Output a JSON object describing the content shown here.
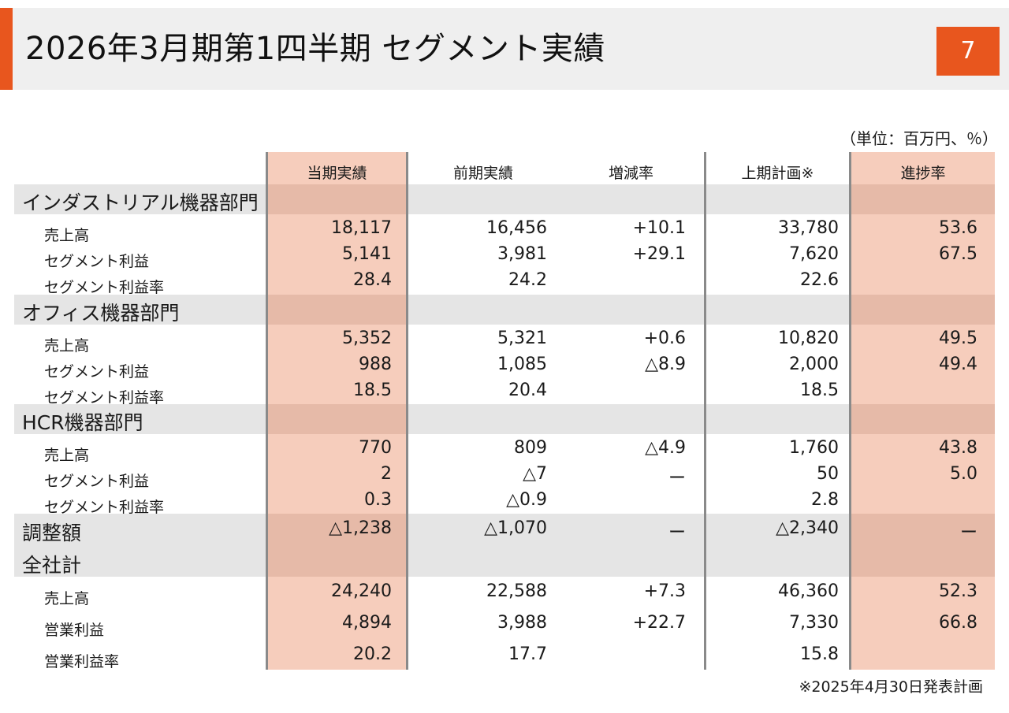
{
  "header": {
    "title": "2026年3月期第1四半期 セグメント実績",
    "page_number": "7"
  },
  "unit_note": "（単位：百万円、％）",
  "footnote": "※2025年4月30日発表計画",
  "columns": [
    "当期実績",
    "前期実績",
    "増減率",
    "上期計画※",
    "進捗率"
  ],
  "sections": [
    {
      "name": "インダストリアル機器部門",
      "rows": [
        {
          "label": "売上高",
          "values": [
            "18,117",
            "16,456",
            "+10.1",
            "33,780",
            "53.6"
          ]
        },
        {
          "label": "セグメント利益",
          "values": [
            "5,141",
            "3,981",
            "+29.1",
            "7,620",
            "67.5"
          ]
        },
        {
          "label": "セグメント利益率",
          "values": [
            "28.4",
            "24.2",
            "",
            "22.6",
            ""
          ]
        }
      ]
    },
    {
      "name": "オフィス機器部門",
      "rows": [
        {
          "label": "売上高",
          "values": [
            "5,352",
            "5,321",
            "+0.6",
            "10,820",
            "49.5"
          ]
        },
        {
          "label": "セグメント利益",
          "values": [
            "988",
            "1,085",
            "△8.9",
            "2,000",
            "49.4"
          ]
        },
        {
          "label": "セグメント利益率",
          "values": [
            "18.5",
            "20.4",
            "",
            "18.5",
            ""
          ]
        }
      ]
    },
    {
      "name": "HCR機器部門",
      "rows": [
        {
          "label": "売上高",
          "values": [
            "770",
            "809",
            "△4.9",
            "1,760",
            "43.8"
          ]
        },
        {
          "label": "セグメント利益",
          "values": [
            "2",
            "△7",
            "ー",
            "50",
            "5.0"
          ]
        },
        {
          "label": "セグメント利益率",
          "values": [
            "0.3",
            "△0.9",
            "",
            "2.8",
            ""
          ]
        }
      ]
    }
  ],
  "adjustment": {
    "name": "調整額",
    "values": [
      "△1,238",
      "△1,070",
      "ー",
      "△2,340",
      "ー"
    ]
  },
  "total": {
    "name": "全社計",
    "rows": [
      {
        "label": "売上高",
        "values": [
          "24,240",
          "22,588",
          "+7.3",
          "46,360",
          "52.3"
        ]
      },
      {
        "label": "営業利益",
        "values": [
          "4,894",
          "3,988",
          "+22.7",
          "7,330",
          "66.8"
        ]
      },
      {
        "label": "営業利益率",
        "values": [
          "20.2",
          "17.7",
          "",
          "15.8",
          ""
        ]
      }
    ]
  }
}
